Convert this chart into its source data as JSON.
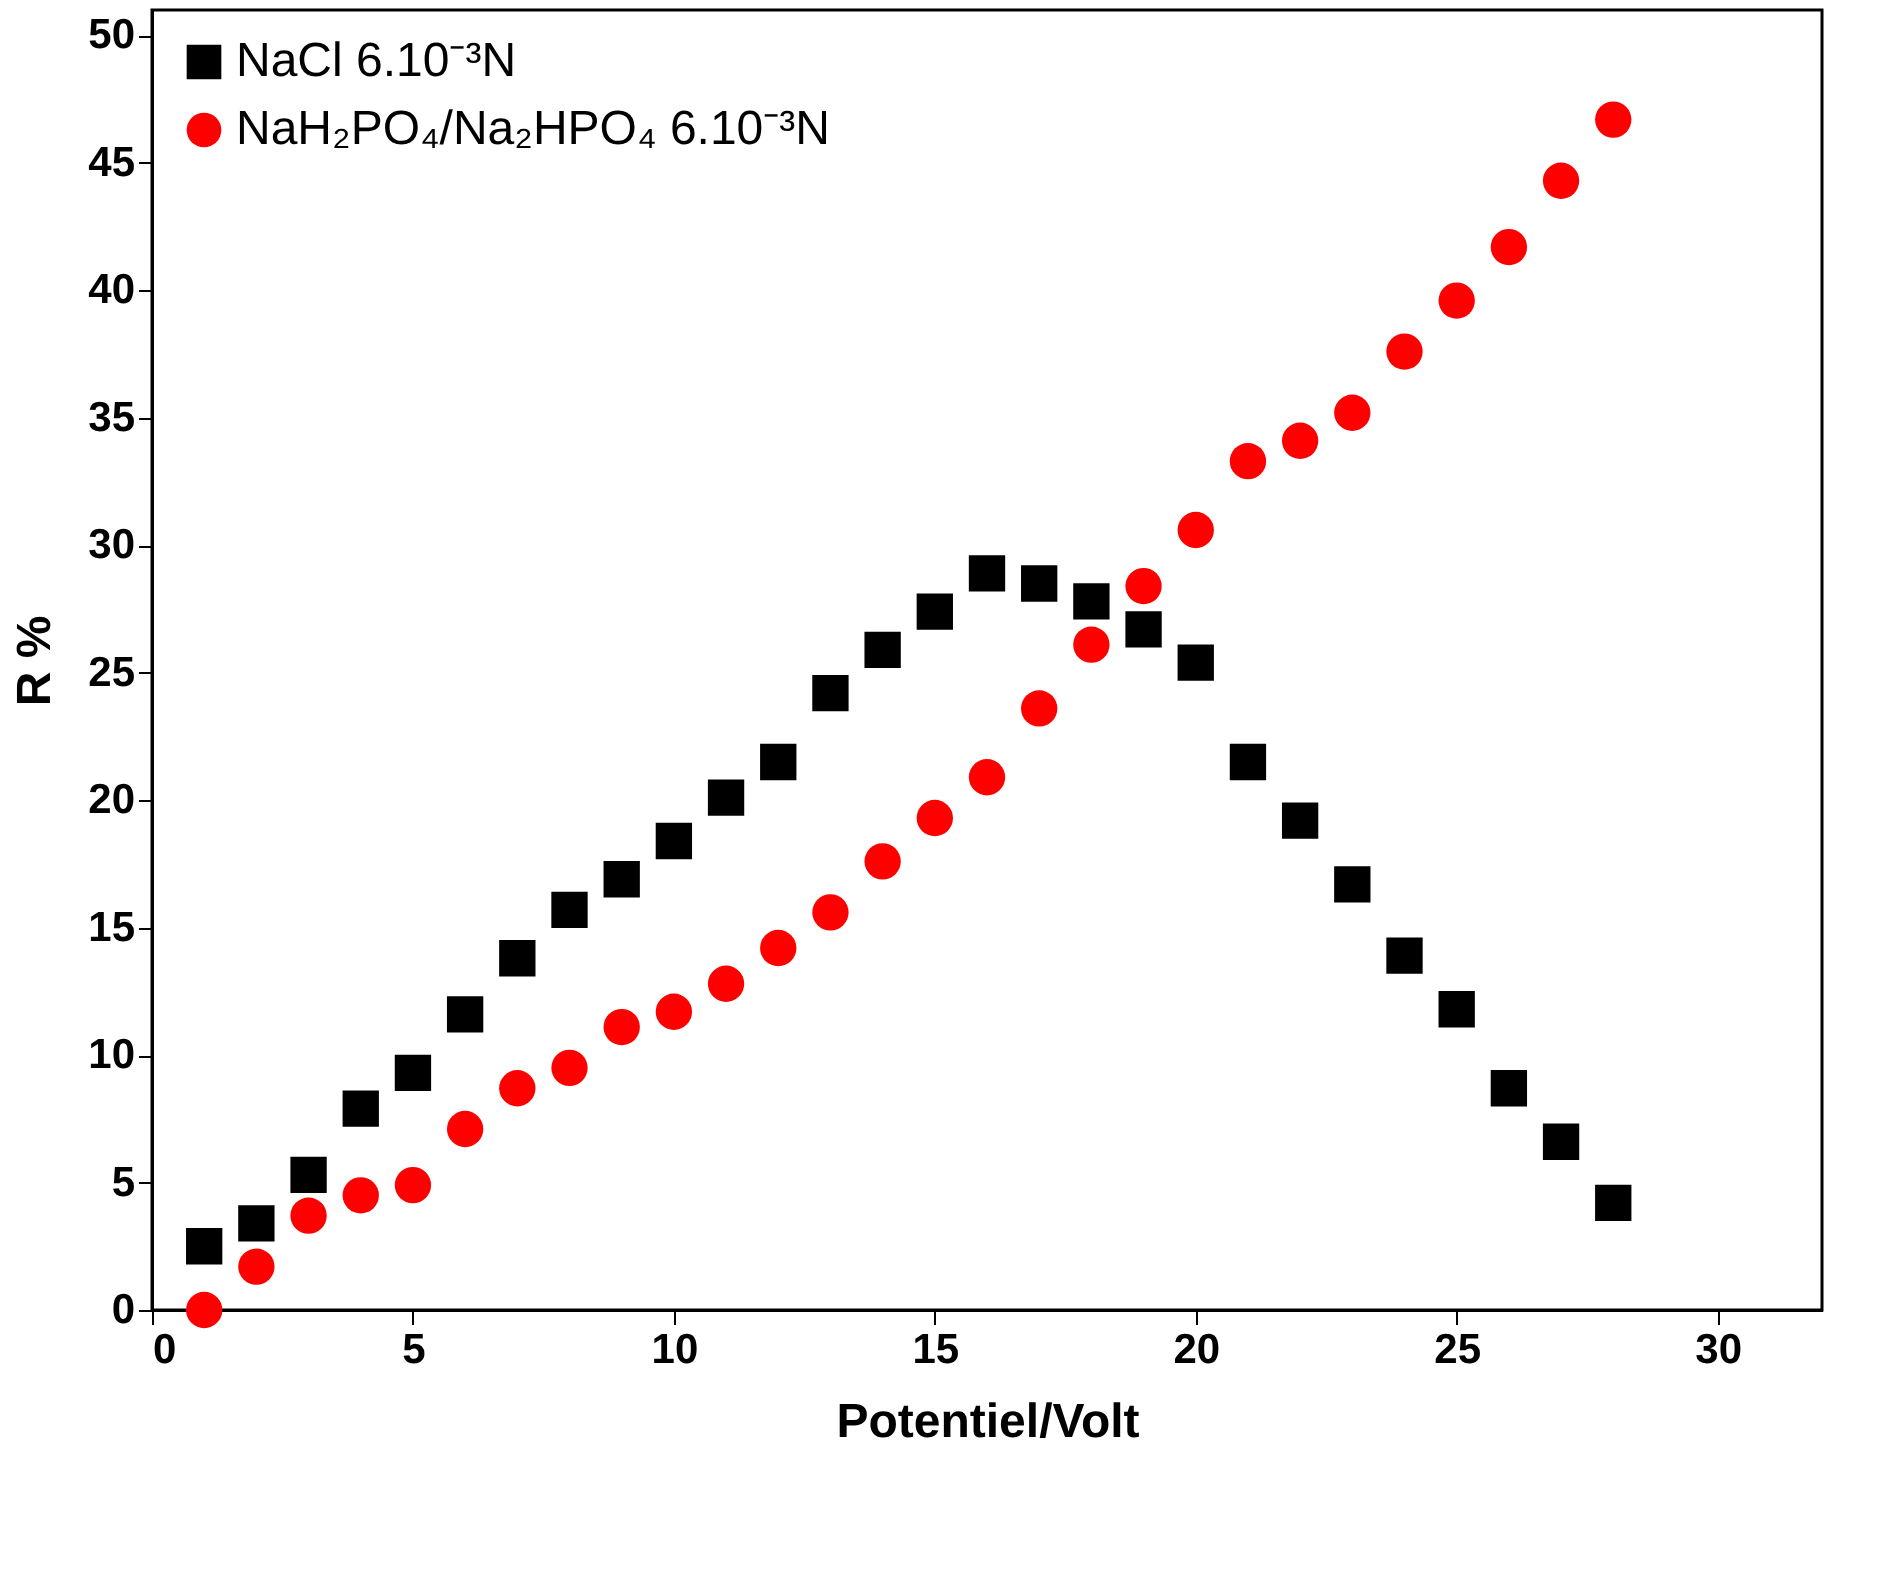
{
  "chart_data": {
    "type": "scatter",
    "xlabel": "Potentiel/Volt",
    "ylabel": "R %",
    "x": [
      1,
      2,
      3,
      4,
      5,
      6,
      7,
      8,
      9,
      10,
      11,
      12,
      13,
      14,
      15,
      16,
      17,
      18,
      19,
      20,
      21,
      22,
      23,
      24,
      25,
      26,
      27,
      28
    ],
    "series": [
      {
        "name": "NaCl  6.10⁻³N",
        "color": "#000000",
        "marker": "square",
        "values": [
          2.5,
          3.4,
          5.3,
          7.9,
          9.3,
          11.6,
          13.8,
          15.7,
          16.9,
          18.4,
          20.1,
          21.5,
          24.2,
          25.9,
          27.4,
          28.9,
          28.5,
          27.8,
          26.7,
          25.4,
          21.5,
          19.2,
          16.7,
          13.9,
          11.8,
          8.7,
          6.6,
          4.2
        ]
      },
      {
        "name": "NaH₂PO₄/Na₂HPO₄ 6.10⁻³N",
        "color": "#ff0000",
        "marker": "circle",
        "values": [
          0,
          1.7,
          3.7,
          4.5,
          4.9,
          7.1,
          8.7,
          9.5,
          11.1,
          11.7,
          12.8,
          14.2,
          15.6,
          17.6,
          19.3,
          20.9,
          23.6,
          26.1,
          28.4,
          30.6,
          33.3,
          34.1,
          35.2,
          37.6,
          39.6,
          41.7,
          44.3,
          46.7
        ]
      }
    ],
    "xlim": [
      0,
      32
    ],
    "xticks": [
      0,
      5,
      10,
      15,
      20,
      25,
      30
    ],
    "ylim": [
      0,
      51
    ],
    "yticks": [
      0,
      5,
      10,
      15,
      20,
      25,
      30,
      35,
      40,
      45,
      50
    ],
    "grid": false,
    "legend": "top left"
  }
}
